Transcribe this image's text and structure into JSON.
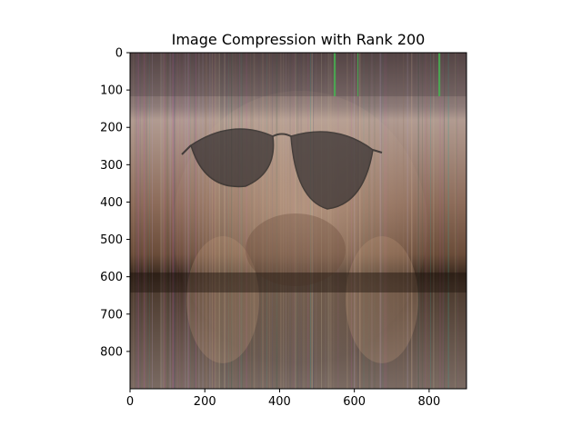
{
  "figure": {
    "title": "Image Compression with Rank 200",
    "image_description_name": "compressed-dog-with-sunglasses",
    "image_size": [
      900,
      900
    ],
    "x_ticks": [
      0,
      200,
      400,
      600,
      800
    ],
    "y_ticks": [
      0,
      100,
      200,
      300,
      400,
      500,
      600,
      700,
      800
    ],
    "x_range": [
      0,
      900
    ],
    "y_range": [
      900,
      0
    ],
    "colors": {
      "warm_top": "#a38a7e",
      "mid_brown": "#6e5443",
      "dark_band": "#2f2219",
      "bottom_tone": "#8a7a70",
      "glasses_tint": "#3a3434",
      "stripe_green": "#48e05a",
      "stripe_magenta": "#b45aa0",
      "stripe_teal": "#3aa090",
      "frame": "#000000"
    }
  }
}
